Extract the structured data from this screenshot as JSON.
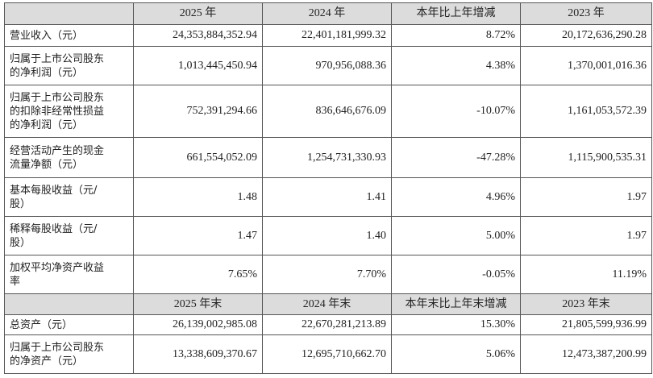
{
  "table": {
    "sections": [
      {
        "header": [
          "2025 年",
          "2024 年",
          "本年比上年增减",
          "2023 年"
        ],
        "rows": [
          {
            "label": [
              "营业收入（元）"
            ],
            "values": [
              "24,353,884,352.94",
              "22,401,181,999.32",
              "8.72%",
              "20,172,636,290.28"
            ]
          },
          {
            "label": [
              "归属于上市公司股东",
              "的净利润（元）"
            ],
            "values": [
              "1,013,445,450.94",
              "970,956,088.36",
              "4.38%",
              "1,370,001,016.36"
            ]
          },
          {
            "label": [
              "归属于上市公司股东",
              "的扣除非经常性损益",
              "的净利润（元）"
            ],
            "values": [
              "752,391,294.66",
              "836,646,676.09",
              "-10.07%",
              "1,161,053,572.39"
            ]
          },
          {
            "label": [
              "经营活动产生的现金",
              "流量净额（元）"
            ],
            "values": [
              "661,554,052.09",
              "1,254,731,330.93",
              "-47.28%",
              "1,115,900,535.31"
            ]
          },
          {
            "label": [
              "基本每股收益（元/",
              "股）"
            ],
            "values": [
              "1.48",
              "1.41",
              "4.96%",
              "1.97"
            ]
          },
          {
            "label": [
              "稀释每股收益（元/",
              "股）"
            ],
            "values": [
              "1.47",
              "1.40",
              "5.00%",
              "1.97"
            ]
          },
          {
            "label": [
              "加权平均净资产收益",
              "率"
            ],
            "values": [
              "7.65%",
              "7.70%",
              "-0.05%",
              "11.19%"
            ]
          }
        ]
      },
      {
        "header": [
          "2025 年末",
          "2024 年末",
          "本年末比上年末增减",
          "2023 年末"
        ],
        "rows": [
          {
            "label": [
              "总资产（元）"
            ],
            "values": [
              "26,139,002,985.08",
              "22,670,281,213.89",
              "15.30%",
              "21,805,599,936.99"
            ]
          },
          {
            "label": [
              "归属于上市公司股东",
              "的净资产（元）"
            ],
            "values": [
              "13,338,609,370.67",
              "12,695,710,662.70",
              "5.06%",
              "12,473,387,200.99"
            ]
          }
        ]
      }
    ]
  }
}
